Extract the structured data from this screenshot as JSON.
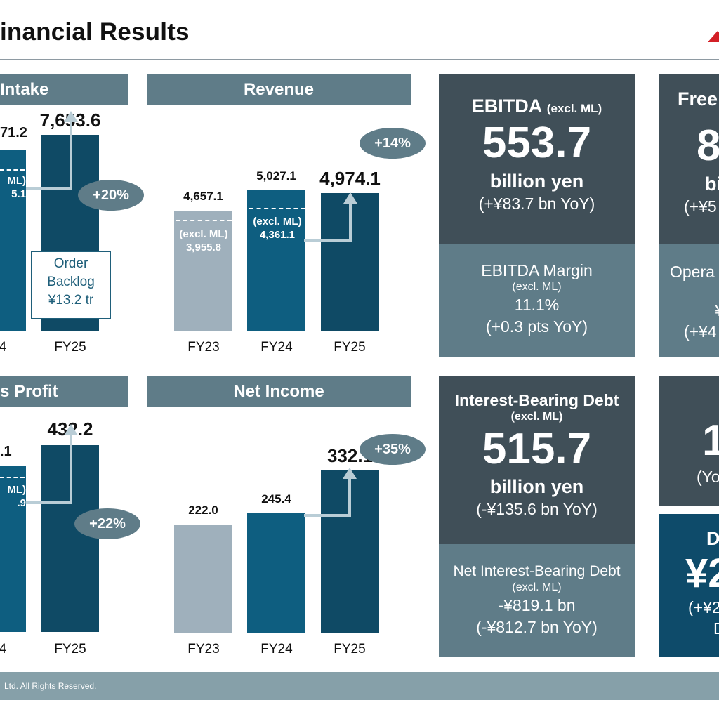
{
  "header": {
    "title": "inancial Results"
  },
  "colors": {
    "bar_fy23": "#9fb0bc",
    "bar_fy24": "#0e5e80",
    "bar_fy25": "#0f4a65",
    "panel_head": "#5f7c88",
    "card_dark": "#404f58",
    "card_mid": "#5f7c88",
    "logo": "#d32027"
  },
  "icons": {
    "logo": "logo-triangle-icon",
    "arrow": "growth-arrow-icon"
  },
  "chart_data": [
    {
      "type": "bar",
      "title": "Intake",
      "categories": [
        "24",
        "FY25"
      ],
      "values": [
        null,
        7653.6
      ],
      "value_labels": [
        "71.2",
        "7,653.6"
      ],
      "excl_label_lines": [
        " ML)",
        "5.1"
      ],
      "growth": "+20%",
      "note": {
        "lines": [
          "Order",
          "Backlog",
          "¥13.2 tr"
        ]
      }
    },
    {
      "type": "bar",
      "title": "Revenue",
      "categories": [
        "FY23",
        "FY24",
        "FY25"
      ],
      "values": [
        4657.1,
        5027.1,
        4974.1
      ],
      "value_labels": [
        "4,657.1",
        "5,027.1",
        "4,974.1"
      ],
      "excl_ml": [
        {
          "label": "(excl. ML)",
          "value": "3,955.8"
        },
        {
          "label": "(excl. ML)",
          "value": "4,361.1"
        }
      ],
      "growth": "+14%"
    },
    {
      "type": "bar",
      "title": "s Profit",
      "categories": [
        "24",
        "FY25"
      ],
      "values": [
        null,
        432.2
      ],
      "value_labels": [
        ".1",
        "432.2"
      ],
      "excl_label_lines": [
        " ML)",
        ".9"
      ],
      "growth": "+22%"
    },
    {
      "type": "bar",
      "title": "Net Income",
      "categories": [
        "FY23",
        "FY24",
        "FY25"
      ],
      "values": [
        222.0,
        245.4,
        332.1
      ],
      "value_labels": [
        "222.0",
        "245.4",
        "332.1"
      ],
      "growth": "+35%"
    }
  ],
  "cards": {
    "ebitda": {
      "title": "EBITDA",
      "title_small": "(excl. ML)",
      "value": "553.7",
      "unit": "billion yen",
      "yoy": "(+¥83.7 bn YoY)",
      "sub_title": "EBITDA Margin",
      "sub_small": "(excl. ML)",
      "sub_value": "11.1%",
      "sub_yoy": "(+0.3 pts YoY)"
    },
    "debt": {
      "title": "Interest-Bearing Debt",
      "title_small": "(excl. ML)",
      "value": "515.7",
      "unit": "billion yen",
      "yoy": "(-¥135.6 bn YoY)",
      "sub_title": "Net Interest-Bearing Debt",
      "sub_small": "(excl. ML)",
      "sub_value": "-¥819.1 bn",
      "sub_yoy": "(-¥812.7 bn YoY)"
    },
    "free": {
      "title": "Free",
      "value": "8",
      "unit": "bi",
      "yoy": "(+¥5",
      "sub_title": "Opera",
      "sub_value": "¥",
      "sub_yoy": "(+¥4"
    },
    "right_lower": {
      "value": "1",
      "yoy": "(Yo"
    },
    "dividend": {
      "title": "D",
      "value": "¥2",
      "yoy": "(+¥2",
      "extra": "D"
    }
  },
  "footer": {
    "text": "Ltd.  All Rights Reserved."
  }
}
